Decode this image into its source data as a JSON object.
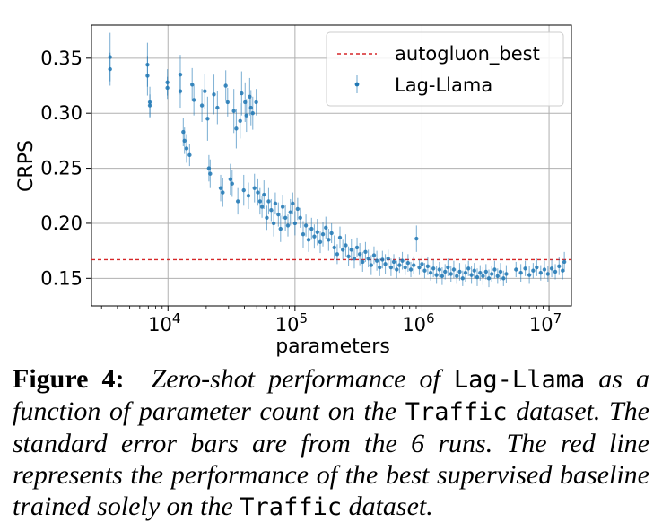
{
  "chart_data": {
    "type": "scatter",
    "xlabel": "parameters",
    "ylabel": "CRPS",
    "x_scale": "log",
    "xlim": [
      2500,
      15000000
    ],
    "ylim": [
      0.125,
      0.38
    ],
    "grid": true,
    "legend_position": "top-right",
    "x_ticks": [
      {
        "value": 10000,
        "base": "10",
        "exp": "4"
      },
      {
        "value": 100000,
        "base": "10",
        "exp": "5"
      },
      {
        "value": 1000000,
        "base": "10",
        "exp": "6"
      },
      {
        "value": 10000000,
        "base": "10",
        "exp": "7"
      }
    ],
    "y_ticks": [
      {
        "value": 0.15,
        "label": "0.15"
      },
      {
        "value": 0.2,
        "label": "0.20"
      },
      {
        "value": 0.25,
        "label": "0.25"
      },
      {
        "value": 0.3,
        "label": "0.30"
      },
      {
        "value": 0.35,
        "label": "0.35"
      }
    ],
    "reference_line": {
      "name": "autogluon_best",
      "y": 0.167,
      "color": "#d62728",
      "style": "dashed"
    },
    "series": [
      {
        "name": "Lag-Llama",
        "color": "#1f77b4",
        "error_bars": "standard error",
        "points": [
          {
            "x": 3500,
            "y": 0.351,
            "err": 0.022
          },
          {
            "x": 3500,
            "y": 0.34,
            "err": 0.015
          },
          {
            "x": 6900,
            "y": 0.344,
            "err": 0.02
          },
          {
            "x": 6900,
            "y": 0.334,
            "err": 0.018
          },
          {
            "x": 7200,
            "y": 0.31,
            "err": 0.014
          },
          {
            "x": 7200,
            "y": 0.307,
            "err": 0.01
          },
          {
            "x": 9900,
            "y": 0.328,
            "err": 0.012
          },
          {
            "x": 9900,
            "y": 0.323,
            "err": 0.01
          },
          {
            "x": 12500,
            "y": 0.335,
            "err": 0.018
          },
          {
            "x": 12500,
            "y": 0.32,
            "err": 0.015
          },
          {
            "x": 13200,
            "y": 0.283,
            "err": 0.013
          },
          {
            "x": 13500,
            "y": 0.275,
            "err": 0.012
          },
          {
            "x": 14000,
            "y": 0.268,
            "err": 0.013
          },
          {
            "x": 14800,
            "y": 0.262,
            "err": 0.01
          },
          {
            "x": 15500,
            "y": 0.326,
            "err": 0.015
          },
          {
            "x": 16000,
            "y": 0.312,
            "err": 0.014
          },
          {
            "x": 18500,
            "y": 0.307,
            "err": 0.015
          },
          {
            "x": 19500,
            "y": 0.32,
            "err": 0.016
          },
          {
            "x": 20500,
            "y": 0.295,
            "err": 0.02
          },
          {
            "x": 21000,
            "y": 0.25,
            "err": 0.012
          },
          {
            "x": 21500,
            "y": 0.245,
            "err": 0.013
          },
          {
            "x": 23000,
            "y": 0.317,
            "err": 0.018
          },
          {
            "x": 24500,
            "y": 0.305,
            "err": 0.015
          },
          {
            "x": 26000,
            "y": 0.232,
            "err": 0.012
          },
          {
            "x": 27000,
            "y": 0.228,
            "err": 0.013
          },
          {
            "x": 28500,
            "y": 0.325,
            "err": 0.014
          },
          {
            "x": 29500,
            "y": 0.31,
            "err": 0.013
          },
          {
            "x": 31000,
            "y": 0.24,
            "err": 0.014
          },
          {
            "x": 32000,
            "y": 0.236,
            "err": 0.012
          },
          {
            "x": 33000,
            "y": 0.302,
            "err": 0.02
          },
          {
            "x": 34500,
            "y": 0.286,
            "err": 0.018
          },
          {
            "x": 35500,
            "y": 0.22,
            "err": 0.012
          },
          {
            "x": 37000,
            "y": 0.293,
            "err": 0.016
          },
          {
            "x": 38000,
            "y": 0.318,
            "err": 0.02
          },
          {
            "x": 39500,
            "y": 0.23,
            "err": 0.014
          },
          {
            "x": 40500,
            "y": 0.31,
            "err": 0.018
          },
          {
            "x": 41500,
            "y": 0.298,
            "err": 0.015
          },
          {
            "x": 43000,
            "y": 0.225,
            "err": 0.012
          },
          {
            "x": 44000,
            "y": 0.315,
            "err": 0.017
          },
          {
            "x": 45000,
            "y": 0.305,
            "err": 0.016
          },
          {
            "x": 46500,
            "y": 0.3,
            "err": 0.015
          },
          {
            "x": 48000,
            "y": 0.232,
            "err": 0.013
          },
          {
            "x": 49500,
            "y": 0.31,
            "err": 0.012
          },
          {
            "x": 51000,
            "y": 0.228,
            "err": 0.012
          },
          {
            "x": 53000,
            "y": 0.22,
            "err": 0.012
          },
          {
            "x": 55000,
            "y": 0.215,
            "err": 0.01
          },
          {
            "x": 57000,
            "y": 0.226,
            "err": 0.013
          },
          {
            "x": 60000,
            "y": 0.205,
            "err": 0.011
          },
          {
            "x": 62000,
            "y": 0.22,
            "err": 0.012
          },
          {
            "x": 65000,
            "y": 0.212,
            "err": 0.01
          },
          {
            "x": 68000,
            "y": 0.2,
            "err": 0.012
          },
          {
            "x": 70000,
            "y": 0.218,
            "err": 0.01
          },
          {
            "x": 74000,
            "y": 0.208,
            "err": 0.011
          },
          {
            "x": 77000,
            "y": 0.195,
            "err": 0.012
          },
          {
            "x": 80000,
            "y": 0.215,
            "err": 0.011
          },
          {
            "x": 84000,
            "y": 0.205,
            "err": 0.012
          },
          {
            "x": 88000,
            "y": 0.198,
            "err": 0.01
          },
          {
            "x": 92000,
            "y": 0.21,
            "err": 0.012
          },
          {
            "x": 96000,
            "y": 0.218,
            "err": 0.01
          },
          {
            "x": 100000,
            "y": 0.2,
            "err": 0.011
          },
          {
            "x": 105000,
            "y": 0.213,
            "err": 0.01
          },
          {
            "x": 110000,
            "y": 0.205,
            "err": 0.009
          },
          {
            "x": 116000,
            "y": 0.19,
            "err": 0.012
          },
          {
            "x": 122000,
            "y": 0.198,
            "err": 0.01
          },
          {
            "x": 128000,
            "y": 0.185,
            "err": 0.011
          },
          {
            "x": 135000,
            "y": 0.195,
            "err": 0.01
          },
          {
            "x": 142000,
            "y": 0.188,
            "err": 0.011
          },
          {
            "x": 150000,
            "y": 0.192,
            "err": 0.012
          },
          {
            "x": 158000,
            "y": 0.183,
            "err": 0.01
          },
          {
            "x": 166000,
            "y": 0.19,
            "err": 0.011
          },
          {
            "x": 175000,
            "y": 0.196,
            "err": 0.01
          },
          {
            "x": 184000,
            "y": 0.185,
            "err": 0.01
          },
          {
            "x": 194000,
            "y": 0.191,
            "err": 0.009
          },
          {
            "x": 204000,
            "y": 0.178,
            "err": 0.011
          },
          {
            "x": 215000,
            "y": 0.172,
            "err": 0.009
          },
          {
            "x": 226000,
            "y": 0.187,
            "err": 0.01
          },
          {
            "x": 238000,
            "y": 0.176,
            "err": 0.009
          },
          {
            "x": 251000,
            "y": 0.18,
            "err": 0.01
          },
          {
            "x": 264000,
            "y": 0.17,
            "err": 0.009
          },
          {
            "x": 278000,
            "y": 0.176,
            "err": 0.01
          },
          {
            "x": 293000,
            "y": 0.168,
            "err": 0.009
          },
          {
            "x": 308000,
            "y": 0.178,
            "err": 0.009
          },
          {
            "x": 324000,
            "y": 0.172,
            "err": 0.01
          },
          {
            "x": 341000,
            "y": 0.165,
            "err": 0.009
          },
          {
            "x": 359000,
            "y": 0.174,
            "err": 0.009
          },
          {
            "x": 378000,
            "y": 0.168,
            "err": 0.008
          },
          {
            "x": 398000,
            "y": 0.162,
            "err": 0.009
          },
          {
            "x": 419000,
            "y": 0.171,
            "err": 0.008
          },
          {
            "x": 441000,
            "y": 0.166,
            "err": 0.009
          },
          {
            "x": 464000,
            "y": 0.16,
            "err": 0.008
          },
          {
            "x": 488000,
            "y": 0.167,
            "err": 0.008
          },
          {
            "x": 514000,
            "y": 0.163,
            "err": 0.009
          },
          {
            "x": 541000,
            "y": 0.168,
            "err": 0.008
          },
          {
            "x": 570000,
            "y": 0.16,
            "err": 0.008
          },
          {
            "x": 600000,
            "y": 0.165,
            "err": 0.007
          },
          {
            "x": 632000,
            "y": 0.158,
            "err": 0.008
          },
          {
            "x": 665000,
            "y": 0.162,
            "err": 0.007
          },
          {
            "x": 700000,
            "y": 0.166,
            "err": 0.008
          },
          {
            "x": 737000,
            "y": 0.16,
            "err": 0.007
          },
          {
            "x": 776000,
            "y": 0.164,
            "err": 0.008
          },
          {
            "x": 817000,
            "y": 0.158,
            "err": 0.007
          },
          {
            "x": 860000,
            "y": 0.162,
            "err": 0.008
          },
          {
            "x": 905000,
            "y": 0.186,
            "err": 0.012
          },
          {
            "x": 953000,
            "y": 0.16,
            "err": 0.007
          },
          {
            "x": 1000000,
            "y": 0.163,
            "err": 0.008
          },
          {
            "x": 1050000,
            "y": 0.157,
            "err": 0.007
          },
          {
            "x": 1110000,
            "y": 0.161,
            "err": 0.008
          },
          {
            "x": 1170000,
            "y": 0.155,
            "err": 0.007
          },
          {
            "x": 1230000,
            "y": 0.159,
            "err": 0.008
          },
          {
            "x": 1300000,
            "y": 0.153,
            "err": 0.008
          },
          {
            "x": 1370000,
            "y": 0.158,
            "err": 0.007
          },
          {
            "x": 1440000,
            "y": 0.152,
            "err": 0.008
          },
          {
            "x": 1520000,
            "y": 0.156,
            "err": 0.007
          },
          {
            "x": 1600000,
            "y": 0.16,
            "err": 0.008
          },
          {
            "x": 1690000,
            "y": 0.154,
            "err": 0.007
          },
          {
            "x": 1780000,
            "y": 0.158,
            "err": 0.008
          },
          {
            "x": 1880000,
            "y": 0.152,
            "err": 0.007
          },
          {
            "x": 1980000,
            "y": 0.156,
            "err": 0.008
          },
          {
            "x": 2090000,
            "y": 0.15,
            "err": 0.007
          },
          {
            "x": 2200000,
            "y": 0.155,
            "err": 0.008
          },
          {
            "x": 2320000,
            "y": 0.159,
            "err": 0.007
          },
          {
            "x": 2450000,
            "y": 0.153,
            "err": 0.008
          },
          {
            "x": 2580000,
            "y": 0.157,
            "err": 0.007
          },
          {
            "x": 2720000,
            "y": 0.151,
            "err": 0.008
          },
          {
            "x": 2870000,
            "y": 0.155,
            "err": 0.007
          },
          {
            "x": 3020000,
            "y": 0.152,
            "err": 0.008
          },
          {
            "x": 3190000,
            "y": 0.156,
            "err": 0.007
          },
          {
            "x": 3360000,
            "y": 0.15,
            "err": 0.008
          },
          {
            "x": 3540000,
            "y": 0.154,
            "err": 0.007
          },
          {
            "x": 3730000,
            "y": 0.158,
            "err": 0.008
          },
          {
            "x": 3940000,
            "y": 0.152,
            "err": 0.007
          },
          {
            "x": 4150000,
            "y": 0.156,
            "err": 0.008
          },
          {
            "x": 4380000,
            "y": 0.15,
            "err": 0.007
          },
          {
            "x": 4610000,
            "y": 0.154,
            "err": 0.008
          },
          {
            "x": 5500000,
            "y": 0.158,
            "err": 0.007
          },
          {
            "x": 6000000,
            "y": 0.155,
            "err": 0.008
          },
          {
            "x": 6500000,
            "y": 0.159,
            "err": 0.007
          },
          {
            "x": 7000000,
            "y": 0.153,
            "err": 0.008
          },
          {
            "x": 7500000,
            "y": 0.157,
            "err": 0.007
          },
          {
            "x": 8000000,
            "y": 0.16,
            "err": 0.008
          },
          {
            "x": 8600000,
            "y": 0.155,
            "err": 0.007
          },
          {
            "x": 9200000,
            "y": 0.158,
            "err": 0.008
          },
          {
            "x": 9800000,
            "y": 0.154,
            "err": 0.007
          },
          {
            "x": 10500000,
            "y": 0.159,
            "err": 0.008
          },
          {
            "x": 11200000,
            "y": 0.156,
            "err": 0.007
          },
          {
            "x": 12000000,
            "y": 0.161,
            "err": 0.008
          },
          {
            "x": 12800000,
            "y": 0.157,
            "err": 0.008
          },
          {
            "x": 13200000,
            "y": 0.165,
            "err": 0.009
          }
        ]
      }
    ]
  },
  "caption": {
    "label": "Figure 4:",
    "part1": "Zero-shot performance of",
    "code1": "Lag-Llama",
    "part2": "as a function of parameter count on the",
    "code2": "Traffic",
    "part3": "dataset. The standard error bars are from the 6 runs. The red line represents the performance of the best supervised baseline trained solely on the",
    "code3": "Traffic",
    "part4": "dataset."
  }
}
